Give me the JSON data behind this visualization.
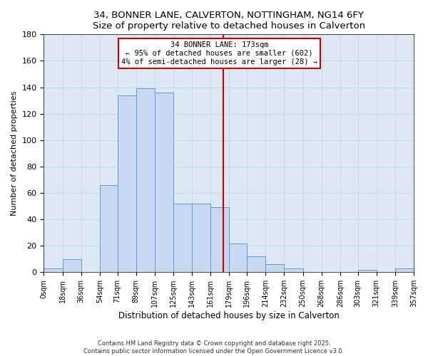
{
  "title": "34, BONNER LANE, CALVERTON, NOTTINGHAM, NG14 6FY",
  "subtitle": "Size of property relative to detached houses in Calverton",
  "xlabel": "Distribution of detached houses by size in Calverton",
  "ylabel": "Number of detached properties",
  "bin_edges": [
    0,
    18,
    36,
    54,
    71,
    89,
    107,
    125,
    143,
    161,
    179,
    196,
    214,
    232,
    250,
    268,
    286,
    303,
    321,
    339,
    357
  ],
  "bar_heights": [
    3,
    10,
    0,
    66,
    134,
    139,
    136,
    52,
    52,
    49,
    22,
    12,
    6,
    3,
    0,
    0,
    0,
    2,
    0,
    3
  ],
  "bar_color": "#c6d9f1",
  "bar_edge_color": "#5b9bd5",
  "property_size": 173,
  "vline_color": "#cc0000",
  "annotation_text": "34 BONNER LANE: 173sqm\n← 95% of detached houses are smaller (602)\n4% of semi-detached houses are larger (28) →",
  "annotation_box_color": "#ffffff",
  "annotation_box_edge_color": "#cc0000",
  "grid_color": "#c8d8e8",
  "background_color": "#ffffff",
  "axes_bg_color": "#dce9f5",
  "footer_text": "Contains HM Land Registry data © Crown copyright and database right 2025.\nContains public sector information licensed under the Open Government Licence v3.0.",
  "tick_labels": [
    "0sqm",
    "18sqm",
    "36sqm",
    "54sqm",
    "71sqm",
    "89sqm",
    "107sqm",
    "125sqm",
    "143sqm",
    "161sqm",
    "179sqm",
    "196sqm",
    "214sqm",
    "232sqm",
    "250sqm",
    "268sqm",
    "286sqm",
    "303sqm",
    "321sqm",
    "339sqm",
    "357sqm"
  ],
  "ylim": [
    0,
    180
  ],
  "yticks": [
    0,
    20,
    40,
    60,
    80,
    100,
    120,
    140,
    160,
    180
  ]
}
